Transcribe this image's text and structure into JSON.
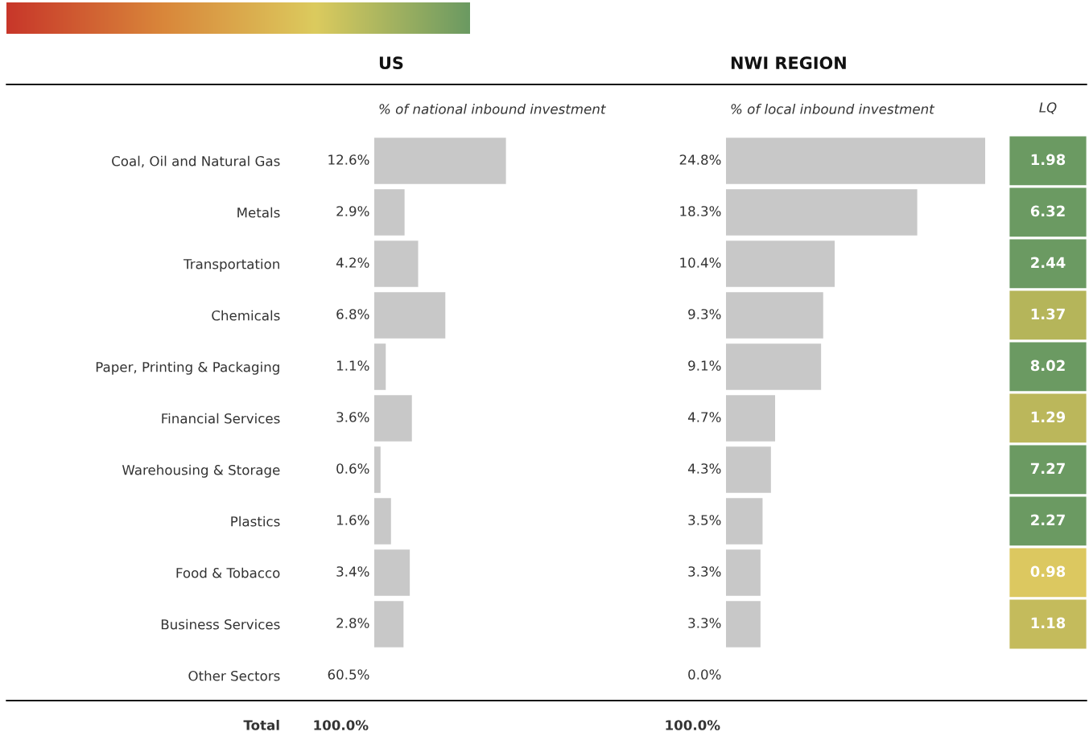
{
  "chart_data": [
    {
      "type": "bar",
      "orientation": "horizontal",
      "title": "US",
      "subtitle": "% of national inbound investment",
      "categories": [
        "Coal, Oil and Natural Gas",
        "Metals",
        "Transportation",
        "Chemicals",
        "Paper, Printing & Packaging",
        "Financial Services",
        "Warehousing & Storage",
        "Plastics",
        "Food & Tobacco",
        "Business Services",
        "Other Sectors"
      ],
      "values": [
        12.6,
        2.9,
        4.2,
        6.8,
        1.1,
        3.6,
        0.6,
        1.6,
        3.4,
        2.8,
        null
      ],
      "value_labels": [
        "12.6%",
        "2.9%",
        "4.2%",
        "6.8%",
        "1.1%",
        "3.6%",
        "0.6%",
        "1.6%",
        "3.4%",
        "2.8%",
        "60.5%"
      ],
      "color": "#c8c8c8",
      "tick_labels": "y",
      "annotations": [
        "Total",
        "100.0%"
      ]
    },
    {
      "type": "bar",
      "orientation": "horizontal",
      "title": "NWI REGION",
      "subtitle": "% of local inbound investment",
      "values": [
        24.8,
        18.3,
        10.4,
        9.3,
        9.1,
        4.7,
        4.3,
        3.5,
        3.3,
        3.3,
        0.0
      ],
      "value_labels": [
        "24.8%",
        "18.3%",
        "10.4%",
        "9.3%",
        "9.1%",
        "4.7%",
        "4.3%",
        "3.5%",
        "3.3%",
        "3.3%",
        "0.0%"
      ],
      "categories": [
        null,
        null,
        null,
        null,
        null,
        null,
        null,
        null,
        null,
        null,
        null
      ],
      "color": "#c8c8c8",
      "annotations": [
        "100.0%"
      ]
    },
    {
      "type": "heatmap",
      "categories": [
        "LQ"
      ],
      "y_categories": [
        null,
        null,
        null,
        null,
        null,
        null,
        null,
        null,
        null,
        null
      ],
      "cells": [
        [
          1.98
        ],
        [
          6.32
        ],
        [
          2.44
        ],
        [
          1.37
        ],
        [
          8.02
        ],
        [
          1.29
        ],
        [
          7.27
        ],
        [
          2.27
        ],
        [
          0.98
        ],
        [
          1.18
        ]
      ],
      "cell_labels": [
        [
          "1.98"
        ],
        [
          "6.32"
        ],
        [
          "2.44"
        ],
        [
          "1.37"
        ],
        [
          "8.02"
        ],
        [
          "1.29"
        ],
        [
          "7.27"
        ],
        [
          "2.27"
        ],
        [
          "0.98"
        ],
        [
          "1.18"
        ]
      ]
    }
  ]
}
